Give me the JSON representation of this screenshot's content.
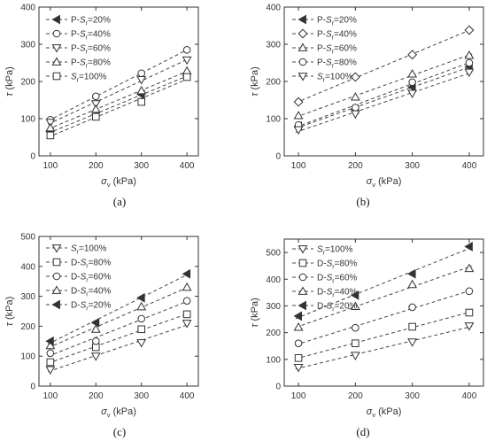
{
  "chart_data": [
    {
      "id": "a",
      "type": "line",
      "caption": "(a)",
      "xlabel": "σv (kPa)",
      "ylabel": "τ (kPa)",
      "xlim": [
        75,
        425
      ],
      "ylim": [
        0,
        400
      ],
      "xticks": [
        100,
        200,
        300,
        400
      ],
      "yticks": [
        0,
        100,
        200,
        300,
        400
      ],
      "legend_position": "top-left",
      "series": [
        {
          "name": "P-Sr=20%",
          "marker": "triangle-left-filled",
          "x": [
            100,
            200,
            300,
            400
          ],
          "y": [
            65,
            110,
            165,
            215
          ]
        },
        {
          "name": "P-Sr=40%",
          "marker": "circle",
          "x": [
            100,
            200,
            300,
            400
          ],
          "y": [
            97,
            160,
            222,
            285
          ]
        },
        {
          "name": "P-Sr=60%",
          "marker": "triangle-down",
          "x": [
            100,
            200,
            300,
            400
          ],
          "y": [
            90,
            140,
            205,
            258
          ]
        },
        {
          "name": "P-Sr=80%",
          "marker": "triangle-up",
          "x": [
            100,
            200,
            300,
            400
          ],
          "y": [
            75,
            125,
            175,
            228
          ]
        },
        {
          "name": "Sr=100%",
          "marker": "square",
          "x": [
            100,
            200,
            300,
            400
          ],
          "y": [
            55,
            105,
            145,
            212
          ]
        }
      ]
    },
    {
      "id": "b",
      "type": "line",
      "caption": "(b)",
      "xlabel": "σv (kPa)",
      "ylabel": "τ (kPa)",
      "xlim": [
        75,
        425
      ],
      "ylim": [
        0,
        400
      ],
      "xticks": [
        100,
        200,
        300,
        400
      ],
      "yticks": [
        0,
        100,
        200,
        300,
        400
      ],
      "legend_position": "top-left",
      "series": [
        {
          "name": "P-Sr=20%",
          "marker": "triangle-left-filled",
          "x": [
            100,
            200,
            300,
            400
          ],
          "y": [
            80,
            125,
            185,
            240
          ]
        },
        {
          "name": "P-Sr=40%",
          "marker": "diamond",
          "x": [
            100,
            200,
            300,
            400
          ],
          "y": [
            145,
            212,
            272,
            338
          ]
        },
        {
          "name": "P-Sr=60%",
          "marker": "triangle-up",
          "x": [
            100,
            200,
            300,
            400
          ],
          "y": [
            108,
            158,
            220,
            270
          ]
        },
        {
          "name": "P-Sr=80%",
          "marker": "circle",
          "x": [
            100,
            200,
            300,
            400
          ],
          "y": [
            83,
            130,
            198,
            250
          ]
        },
        {
          "name": "Sr=100%",
          "marker": "triangle-down",
          "x": [
            100,
            200,
            300,
            400
          ],
          "y": [
            70,
            113,
            168,
            225
          ]
        }
      ]
    },
    {
      "id": "c",
      "type": "line",
      "caption": "(c)",
      "xlabel": "σv (kPa)",
      "ylabel": "τ (kPa)",
      "xlim": [
        75,
        425
      ],
      "ylim": [
        0,
        500
      ],
      "xticks": [
        100,
        200,
        300,
        400
      ],
      "yticks": [
        0,
        100,
        200,
        300,
        400,
        500
      ],
      "legend_position": "top-left",
      "series": [
        {
          "name": "Sr=100%",
          "marker": "triangle-down",
          "x": [
            100,
            200,
            300,
            400
          ],
          "y": [
            55,
            100,
            145,
            210
          ]
        },
        {
          "name": "D-Sr=80%",
          "marker": "square",
          "x": [
            100,
            200,
            300,
            400
          ],
          "y": [
            80,
            130,
            190,
            240
          ]
        },
        {
          "name": "D-Sr=60%",
          "marker": "circle",
          "x": [
            100,
            200,
            300,
            400
          ],
          "y": [
            110,
            150,
            225,
            285
          ]
        },
        {
          "name": "D-Sr=40%",
          "marker": "triangle-up",
          "x": [
            100,
            200,
            300,
            400
          ],
          "y": [
            135,
            190,
            265,
            330
          ]
        },
        {
          "name": "D-Sr=20%",
          "marker": "triangle-left-filled",
          "x": [
            100,
            200,
            300,
            400
          ],
          "y": [
            150,
            212,
            295,
            375
          ]
        }
      ]
    },
    {
      "id": "d",
      "type": "line",
      "caption": "(d)",
      "xlabel": "σv (kPa)",
      "ylabel": "τ (kPa)",
      "xlim": [
        75,
        425
      ],
      "ylim": [
        0,
        550
      ],
      "xticks": [
        100,
        200,
        300,
        400
      ],
      "yticks": [
        0,
        100,
        200,
        300,
        400,
        500
      ],
      "legend_position": "top-left",
      "series": [
        {
          "name": "Sr=100%",
          "marker": "triangle-down",
          "x": [
            100,
            200,
            300,
            400
          ],
          "y": [
            70,
            115,
            165,
            225
          ]
        },
        {
          "name": "D-Sr=80%",
          "marker": "square",
          "x": [
            100,
            200,
            300,
            400
          ],
          "y": [
            105,
            160,
            222,
            275
          ]
        },
        {
          "name": "D-Sr=60%",
          "marker": "circle",
          "x": [
            100,
            200,
            300,
            400
          ],
          "y": [
            160,
            218,
            295,
            355
          ]
        },
        {
          "name": "D-Sr=40%",
          "marker": "triangle-up",
          "x": [
            100,
            200,
            300,
            400
          ],
          "y": [
            220,
            298,
            380,
            440
          ]
        },
        {
          "name": "D-Sr=20%",
          "marker": "triangle-left-filled",
          "x": [
            100,
            200,
            300,
            400
          ],
          "y": [
            262,
            340,
            420,
            522
          ]
        }
      ]
    }
  ]
}
